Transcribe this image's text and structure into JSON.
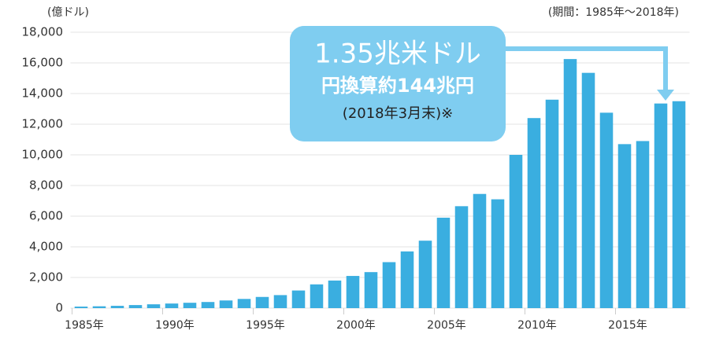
{
  "chart_data": {
    "type": "bar",
    "y_unit_label": "(億ドル)",
    "period_note": "(期間：1985年～2018年)",
    "annotation": {
      "main": "1.35兆米ドル",
      "sub": "円換算約144兆円",
      "date": "(2018年3月末)※"
    },
    "categories": [
      "1985年",
      null,
      null,
      null,
      null,
      "1990年",
      null,
      null,
      null,
      null,
      "1995年",
      null,
      null,
      null,
      null,
      "2000年",
      null,
      null,
      null,
      null,
      "2005年",
      null,
      null,
      null,
      null,
      "2010年",
      null,
      null,
      null,
      null,
      "2015年",
      null,
      null,
      null
    ],
    "values": [
      100,
      120,
      150,
      200,
      250,
      300,
      350,
      400,
      500,
      600,
      730,
      850,
      1150,
      1550,
      1800,
      2100,
      2350,
      3000,
      3700,
      4400,
      5900,
      6650,
      7450,
      7100,
      10000,
      12400,
      13600,
      16250,
      15350,
      12750,
      10700,
      10900,
      13350,
      13500
    ],
    "color": "#3aaee0",
    "ylim": [
      0,
      18000
    ],
    "yticks": [
      0,
      {
        "value": 2000,
        "label": "2,000"
      },
      {
        "value": 4000,
        "label": "4,000"
      },
      {
        "value": 6000,
        "label": "6,000"
      },
      {
        "value": 8000,
        "label": "8,000"
      },
      {
        "value": 10000,
        "label": "10,000"
      },
      {
        "value": 12000,
        "label": "12,000"
      },
      {
        "value": 14000,
        "label": "14,000"
      },
      {
        "value": 16000,
        "label": "16,000"
      },
      {
        "value": 18000,
        "label": "18,000"
      }
    ],
    "grid": true
  }
}
